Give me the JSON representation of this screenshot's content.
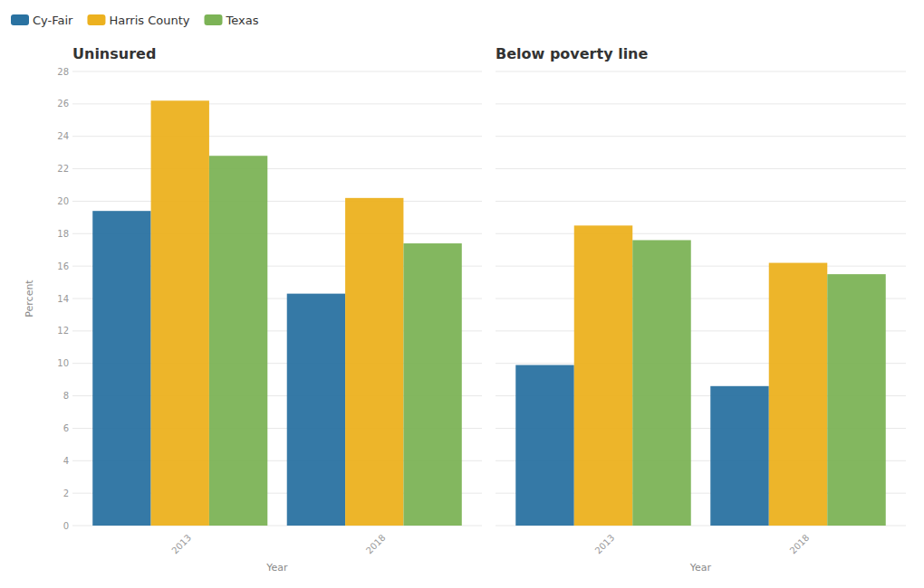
{
  "chart_data": [
    {
      "type": "bar",
      "title": "Uninsured",
      "categories": [
        "2013",
        "2018"
      ],
      "series": [
        {
          "name": "Cy-Fair",
          "color": "#2a72a1",
          "values": [
            19.4,
            14.3
          ]
        },
        {
          "name": "Harris County",
          "color": "#ecb11f",
          "values": [
            26.2,
            20.2
          ]
        },
        {
          "name": "Texas",
          "color": "#7cb356",
          "values": [
            22.8,
            17.4
          ]
        }
      ],
      "x_label": "Year",
      "y_label": "Percent",
      "ylim": [
        0,
        28
      ],
      "yticks": [
        0,
        2,
        4,
        6,
        8,
        10,
        12,
        14,
        16,
        18,
        20,
        22,
        24,
        26,
        28
      ],
      "grid": true,
      "legend": "top-left"
    },
    {
      "type": "bar",
      "title": "Below poverty line",
      "categories": [
        "2013",
        "2018"
      ],
      "series": [
        {
          "name": "Cy-Fair",
          "color": "#2a72a1",
          "values": [
            9.9,
            8.6
          ]
        },
        {
          "name": "Harris County",
          "color": "#ecb11f",
          "values": [
            18.5,
            16.2
          ]
        },
        {
          "name": "Texas",
          "color": "#7cb356",
          "values": [
            17.6,
            15.5
          ]
        }
      ],
      "x_label": "Year",
      "ylim": [
        0,
        28
      ],
      "yticks": [
        0,
        2,
        4,
        6,
        8,
        10,
        12,
        14,
        16,
        18,
        20,
        22,
        24,
        26,
        28
      ],
      "grid": true,
      "tick_labels": "x"
    }
  ]
}
